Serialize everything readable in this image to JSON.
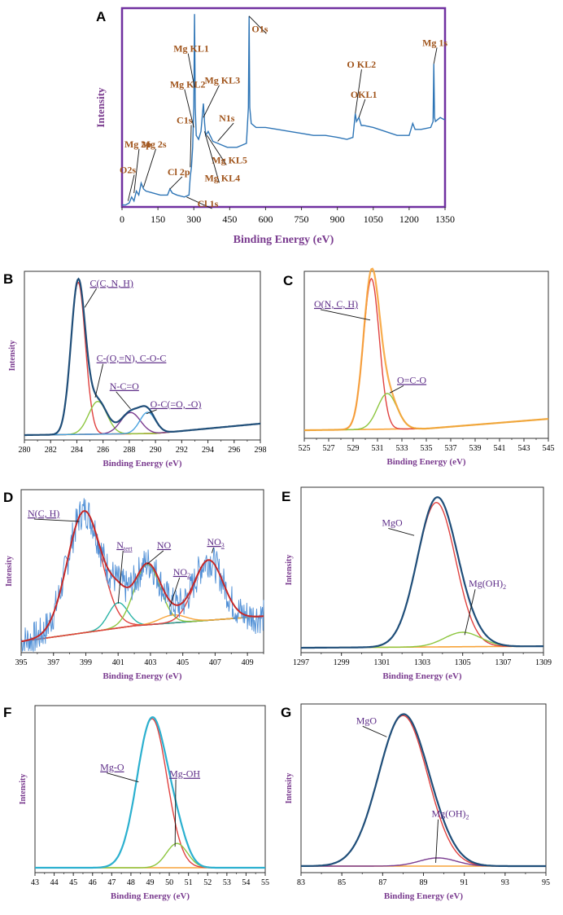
{
  "chart_data": [
    {
      "panel": "A",
      "type": "line",
      "title": "",
      "xlabel": "Binding Energy (eV)",
      "ylabel": "Intensity",
      "xlim": [
        0,
        1350
      ],
      "ylim": [
        0,
        1
      ],
      "xticks": [
        0,
        150,
        300,
        450,
        600,
        750,
        900,
        1050,
        1200,
        1350
      ],
      "colors": {
        "frame": "#7030a0",
        "line": "#2e75b6",
        "annotation": "#a0541b",
        "label": "#7a3b8f"
      },
      "series": [
        {
          "name": "survey",
          "x": [
            0,
            15,
            30,
            40,
            50,
            60,
            70,
            80,
            90,
            100,
            130,
            160,
            190,
            200,
            210,
            230,
            260,
            280,
            285,
            290,
            295,
            300,
            303,
            306,
            310,
            320,
            330,
            340,
            345,
            350,
            355,
            360,
            380,
            400,
            420,
            440,
            460,
            480,
            500,
            520,
            528,
            531,
            534,
            540,
            560,
            600,
            650,
            700,
            750,
            800,
            850,
            900,
            940,
            965,
            975,
            980,
            990,
            1000,
            1010,
            1050,
            1100,
            1150,
            1200,
            1215,
            1225,
            1250,
            1290,
            1300,
            1303,
            1306,
            1310,
            1330,
            1345,
            1350
          ],
          "y": [
            0.01,
            0.01,
            0.02,
            0.05,
            0.03,
            0.08,
            0.06,
            0.12,
            0.09,
            0.08,
            0.07,
            0.06,
            0.06,
            0.09,
            0.07,
            0.06,
            0.05,
            0.06,
            0.15,
            0.2,
            0.3,
            0.5,
            0.97,
            0.5,
            0.36,
            0.34,
            0.38,
            0.52,
            0.42,
            0.36,
            0.37,
            0.38,
            0.33,
            0.32,
            0.31,
            0.3,
            0.3,
            0.3,
            0.31,
            0.32,
            0.5,
            0.96,
            0.5,
            0.42,
            0.4,
            0.4,
            0.39,
            0.38,
            0.37,
            0.36,
            0.36,
            0.35,
            0.34,
            0.35,
            0.47,
            0.43,
            0.45,
            0.41,
            0.41,
            0.4,
            0.38,
            0.36,
            0.36,
            0.42,
            0.39,
            0.39,
            0.4,
            0.43,
            0.72,
            0.45,
            0.43,
            0.45,
            0.44,
            0.44
          ]
        }
      ],
      "annotations": [
        {
          "text": "O1s",
          "x": 531,
          "y": 0.96,
          "lx": 542,
          "ly": 0.88
        },
        {
          "text": "Mg KL1",
          "x": 303,
          "y": 0.6,
          "lx": 215,
          "ly": 0.78
        },
        {
          "text": "Mg KL2",
          "x": 300,
          "y": 0.4,
          "lx": 200,
          "ly": 0.6
        },
        {
          "text": "Mg KL3",
          "x": 340,
          "y": 0.45,
          "lx": 345,
          "ly": 0.62
        },
        {
          "text": "C1s",
          "x": 285,
          "y": 0.2,
          "lx": 228,
          "ly": 0.42
        },
        {
          "text": "N1s",
          "x": 400,
          "y": 0.33,
          "lx": 405,
          "ly": 0.43
        },
        {
          "text": "Mg KL5",
          "x": 355,
          "y": 0.36,
          "lx": 375,
          "ly": 0.22
        },
        {
          "text": "Mg KL4",
          "x": 345,
          "y": 0.38,
          "lx": 345,
          "ly": 0.13
        },
        {
          "text": "Mg 2p",
          "x": 50,
          "y": 0.07,
          "lx": 10,
          "ly": 0.3
        },
        {
          "text": "Mg 2s",
          "x": 90,
          "y": 0.1,
          "lx": 80,
          "ly": 0.3
        },
        {
          "text": "O2s",
          "x": 25,
          "y": 0.03,
          "lx": -10,
          "ly": 0.17
        },
        {
          "text": "Cl 2p",
          "x": 200,
          "y": 0.09,
          "lx": 190,
          "ly": 0.16
        },
        {
          "text": "Cl 1s",
          "x": 270,
          "y": 0.05,
          "lx": 315,
          "ly": 0.0
        },
        {
          "text": "O KL2",
          "x": 975,
          "y": 0.47,
          "lx": 940,
          "ly": 0.7
        },
        {
          "text": "OKL1",
          "x": 990,
          "y": 0.45,
          "lx": 955,
          "ly": 0.55
        },
        {
          "text": "Mg 1s",
          "x": 1303,
          "y": 0.72,
          "lx": 1255,
          "ly": 0.81
        }
      ]
    },
    {
      "panel": "B",
      "type": "line",
      "xlabel": "Binding Energy (eV)",
      "ylabel": "Intensity",
      "xlim": [
        280,
        298
      ],
      "ylim": [
        0,
        1
      ],
      "xticks": [
        280,
        282,
        284,
        286,
        288,
        290,
        292,
        294,
        296,
        298
      ],
      "baseline": [
        [
          280,
          0.02
        ],
        [
          290,
          0.03
        ],
        [
          298,
          0.09
        ]
      ],
      "peaks": [
        {
          "name": "C(C, N, H)",
          "center": 284.1,
          "height": 0.93,
          "width": 0.55,
          "color": "#e0413f"
        },
        {
          "name": "C-(O,=N), C-O-C",
          "center": 285.6,
          "height": 0.2,
          "width": 0.7,
          "color": "#8dc63f"
        },
        {
          "name": "N-C=O",
          "center": 288.1,
          "height": 0.13,
          "width": 0.75,
          "color": "#7a3b8f"
        },
        {
          "name": "O-C(=O, -O)",
          "center": 289.4,
          "height": 0.13,
          "width": 0.6,
          "color": "#4aa3df"
        }
      ],
      "envelope_color": "#1f4e79",
      "annotations": [
        {
          "text": "C(C, N, H)",
          "x": 284.6,
          "y": 0.8,
          "lx": 285.0,
          "ly": 0.93
        },
        {
          "text": "C-(O,=N), C-O-C",
          "x": 285.4,
          "y": 0.25,
          "lx": 285.5,
          "ly": 0.47
        },
        {
          "text": "N-C=O",
          "x": 288.1,
          "y": 0.18,
          "lx": 286.5,
          "ly": 0.3
        },
        {
          "text": "O-C(=O, -O)",
          "x": 289.3,
          "y": 0.15,
          "lx": 289.6,
          "ly": 0.19
        }
      ]
    },
    {
      "panel": "C",
      "type": "line",
      "xlabel": "Binding Energy (eV)",
      "ylabel": "",
      "xlim": [
        525,
        545
      ],
      "ylim": [
        0,
        1
      ],
      "xticks": [
        525,
        527,
        529,
        531,
        533,
        535,
        537,
        539,
        541,
        543,
        545
      ],
      "baseline": [
        [
          525,
          0.04
        ],
        [
          535,
          0.05
        ],
        [
          545,
          0.11
        ]
      ],
      "peaks": [
        {
          "name": "O(N, C, H)",
          "center": 530.5,
          "height": 0.93,
          "width": 0.65,
          "color": "#e0413f"
        },
        {
          "name": "O=C-O",
          "center": 531.8,
          "height": 0.22,
          "width": 0.8,
          "color": "#8dc63f"
        }
      ],
      "envelope_color": "#f7a43a",
      "annotations": [
        {
          "text": "O(N, C, H)",
          "x": 530.4,
          "y": 0.72,
          "lx": 525.8,
          "ly": 0.8
        },
        {
          "text": "O=C-O",
          "x": 532.0,
          "y": 0.27,
          "lx": 532.6,
          "ly": 0.33
        }
      ]
    },
    {
      "panel": "D",
      "type": "line",
      "xlabel": "Binding Energy (eV)",
      "ylabel": "Intensity",
      "xlim": [
        395,
        410
      ],
      "ylim": [
        0,
        1
      ],
      "xticks": [
        395,
        397,
        399,
        401,
        403,
        405,
        407,
        409
      ],
      "baseline": [
        [
          395,
          0.06
        ],
        [
          402,
          0.16
        ],
        [
          410,
          0.22
        ]
      ],
      "peaks": [
        {
          "name": "N(C, H)",
          "center": 398.9,
          "height": 0.77,
          "width": 1.05,
          "color": "#e0413f"
        },
        {
          "name": "N tert",
          "center": 401.0,
          "height": 0.16,
          "width": 0.6,
          "color": "#2ab3a6"
        },
        {
          "name": "NO",
          "center": 402.8,
          "height": 0.38,
          "width": 0.8,
          "color": "#8dc63f"
        },
        {
          "name": "NO2",
          "center": 404.4,
          "height": 0.05,
          "width": 0.8,
          "color": "#f7a43a"
        },
        {
          "name": "NO3",
          "center": 406.6,
          "height": 0.38,
          "width": 0.9,
          "color": "#e0413f"
        }
      ],
      "envelope_color": "#c62828",
      "raw_color": "#4f8fd6",
      "annotations": [
        {
          "text": "N(C, H)",
          "x": 398.6,
          "y": 0.82,
          "lx": 395.4,
          "ly": 0.85
        },
        {
          "text": "N",
          "sub": "tert",
          "x": 401.0,
          "y": 0.3,
          "lx": 400.9,
          "ly": 0.65
        },
        {
          "text": "NO",
          "x": 402.8,
          "y": 0.55,
          "lx": 403.4,
          "ly": 0.65
        },
        {
          "text": "NO",
          "sub": "2",
          "x": 404.2,
          "y": 0.28,
          "lx": 404.4,
          "ly": 0.48
        },
        {
          "text": "NO",
          "sub": "3",
          "x": 406.8,
          "y": 0.62,
          "lx": 406.5,
          "ly": 0.67
        }
      ]
    },
    {
      "panel": "E",
      "type": "line",
      "xlabel": "Binding Energy (eV)",
      "ylabel": "Intensity",
      "xlim": [
        1297,
        1309
      ],
      "ylim": [
        0,
        1
      ],
      "xticks": [
        1297,
        1299,
        1301,
        1303,
        1305,
        1307,
        1309
      ],
      "baseline": [
        [
          1297,
          0.02
        ],
        [
          1309,
          0.03
        ]
      ],
      "peaks": [
        {
          "name": "MgO",
          "center": 1303.7,
          "height": 0.9,
          "width": 0.95,
          "color": "#e0413f"
        },
        {
          "name": "Mg(OH)2",
          "center": 1305.0,
          "height": 0.09,
          "width": 0.9,
          "color": "#8dc63f"
        }
      ],
      "envelope_color": "#1f4e79",
      "annotations": [
        {
          "text": "MgO",
          "x": 1302.6,
          "y": 0.72,
          "lx": 1301.0,
          "ly": 0.78
        },
        {
          "text": "Mg(OH)",
          "sub": "2",
          "x": 1305.1,
          "y": 0.1,
          "lx": 1305.3,
          "ly": 0.4
        }
      ]
    },
    {
      "panel": "F",
      "type": "line",
      "xlabel": "Binding Energy (eV)",
      "ylabel": "Intensity",
      "xlim": [
        43,
        55
      ],
      "ylim": [
        0,
        1
      ],
      "xticks": [
        43,
        44,
        45,
        46,
        47,
        48,
        49,
        50,
        51,
        52,
        53,
        54,
        55
      ],
      "baseline": [
        [
          43,
          0.02
        ],
        [
          55,
          0.02
        ]
      ],
      "peaks": [
        {
          "name": "Mg-O",
          "center": 49.1,
          "height": 0.92,
          "width": 0.78,
          "color": "#e0413f"
        },
        {
          "name": "Mg-OH",
          "center": 50.4,
          "height": 0.15,
          "width": 0.55,
          "color": "#8dc63f"
        }
      ],
      "envelope_color": "#2bb0cf",
      "annotations": [
        {
          "text": "Mg-O",
          "x": 48.4,
          "y": 0.55,
          "lx": 46.4,
          "ly": 0.62
        },
        {
          "text": "Mg-OH",
          "x": 50.3,
          "y": 0.15,
          "lx": 50.0,
          "ly": 0.58
        }
      ]
    },
    {
      "panel": "G",
      "type": "line",
      "xlabel": "Binding Energy (eV)",
      "ylabel": "Intensity",
      "xlim": [
        83,
        95
      ],
      "ylim": [
        0,
        1
      ],
      "xticks": [
        83,
        85,
        87,
        89,
        91,
        93,
        95
      ],
      "baseline": [
        [
          83,
          0.03
        ],
        [
          95,
          0.03
        ]
      ],
      "peaks": [
        {
          "name": "MgO",
          "center": 88.0,
          "height": 0.92,
          "width": 1.2,
          "color": "#e0413f"
        },
        {
          "name": "Mg(OH)2",
          "center": 89.7,
          "height": 0.05,
          "width": 0.9,
          "color": "#7a3b8f"
        }
      ],
      "envelope_color": "#1f4e79",
      "annotations": [
        {
          "text": "MgO",
          "x": 87.2,
          "y": 0.82,
          "lx": 85.7,
          "ly": 0.9
        },
        {
          "text": "Mg(OH)",
          "sub": "2",
          "x": 89.6,
          "y": 0.05,
          "lx": 89.4,
          "ly": 0.33
        }
      ]
    }
  ]
}
